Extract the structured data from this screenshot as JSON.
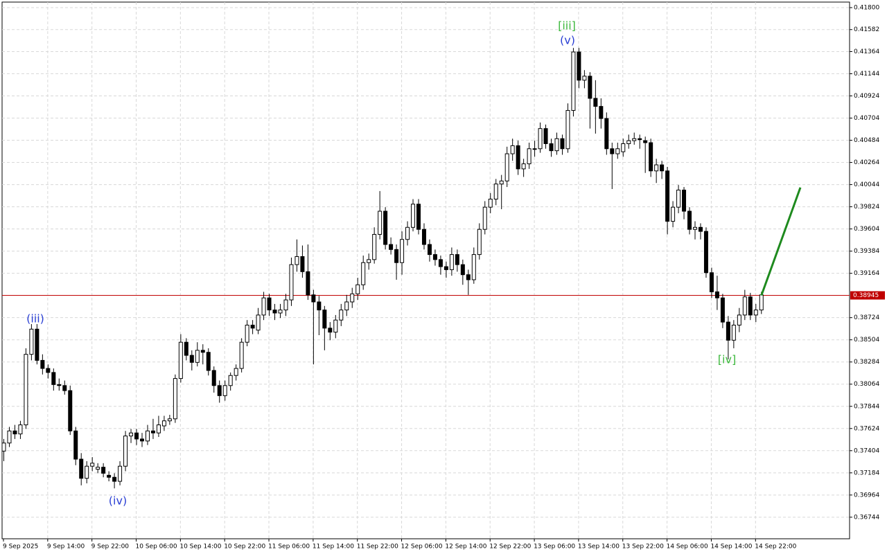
{
  "chart_data": {
    "type": "candlestick",
    "up_color": "#ffffff",
    "down_color": "#000000",
    "grid": true,
    "categories": [
      "9 Sep 2025",
      null,
      null,
      null,
      null,
      null,
      null,
      null,
      "9 Sep 14:00",
      null,
      null,
      null,
      null,
      null,
      null,
      null,
      "9 Sep 22:00",
      null,
      null,
      null,
      null,
      null,
      null,
      null,
      "10 Sep 06:00",
      null,
      null,
      null,
      null,
      null,
      null,
      null,
      "10 Sep 14:00",
      null,
      null,
      null,
      null,
      null,
      null,
      null,
      "10 Sep 22:00",
      null,
      null,
      null,
      null,
      null,
      null,
      null,
      "11 Sep 06:00",
      null,
      null,
      null,
      null,
      null,
      null,
      null,
      "11 Sep 14:00",
      null,
      null,
      null,
      null,
      null,
      null,
      null,
      "11 Sep 22:00",
      null,
      null,
      null,
      null,
      null,
      null,
      null,
      "12 Sep 06:00",
      null,
      null,
      null,
      null,
      null,
      null,
      null,
      "12 Sep 14:00",
      null,
      null,
      null,
      null,
      null,
      null,
      null,
      "12 Sep 22:00",
      null,
      null,
      null,
      null,
      null,
      null,
      null,
      "13 Sep 06:00",
      null,
      null,
      null,
      null,
      null,
      null,
      null,
      "13 Sep 14:00",
      null,
      null,
      null,
      null,
      null,
      null,
      null,
      "13 Sep 22:00",
      null,
      null,
      null,
      null,
      null,
      null,
      null,
      "14 Sep 06:00",
      null,
      null,
      null,
      null,
      null,
      null,
      null,
      "14 Sep 14:00",
      null,
      null,
      null,
      null,
      null,
      null,
      null,
      "14 Sep 22:00",
      null
    ],
    "candles": [
      [
        0.374,
        0.3752,
        0.373,
        0.3748
      ],
      [
        0.3748,
        0.3764,
        0.3744,
        0.376
      ],
      [
        0.376,
        0.3766,
        0.3752,
        0.3757
      ],
      [
        0.3757,
        0.377,
        0.3752,
        0.3766
      ],
      [
        0.3766,
        0.3842,
        0.3762,
        0.3836
      ],
      [
        0.3836,
        0.3866,
        0.383,
        0.3861
      ],
      [
        0.3861,
        0.3866,
        0.3826,
        0.383
      ],
      [
        0.383,
        0.3836,
        0.3816,
        0.3822
      ],
      [
        0.3822,
        0.3826,
        0.3812,
        0.3818
      ],
      [
        0.3818,
        0.3822,
        0.38,
        0.3806
      ],
      [
        0.3806,
        0.3812,
        0.38,
        0.3805
      ],
      [
        0.3805,
        0.381,
        0.3796,
        0.38
      ],
      [
        0.38,
        0.3805,
        0.3756,
        0.376
      ],
      [
        0.376,
        0.3764,
        0.3726,
        0.3732
      ],
      [
        0.3732,
        0.3738,
        0.3706,
        0.3713
      ],
      [
        0.3713,
        0.373,
        0.3708,
        0.3725
      ],
      [
        0.3725,
        0.3734,
        0.372,
        0.3728
      ],
      [
        0.3722,
        0.3728,
        0.3718,
        0.3724
      ],
      [
        0.3724,
        0.3728,
        0.3714,
        0.3718
      ],
      [
        0.3716,
        0.372,
        0.371,
        0.3714
      ],
      [
        0.3714,
        0.3718,
        0.3703,
        0.371
      ],
      [
        0.371,
        0.373,
        0.3706,
        0.3725
      ],
      [
        0.3725,
        0.376,
        0.372,
        0.3755
      ],
      [
        0.3755,
        0.3762,
        0.3748,
        0.3758
      ],
      [
        0.3758,
        0.3762,
        0.3746,
        0.3752
      ],
      [
        0.3752,
        0.3758,
        0.3744,
        0.375
      ],
      [
        0.375,
        0.3766,
        0.3746,
        0.376
      ],
      [
        0.376,
        0.3772,
        0.3752,
        0.3758
      ],
      [
        0.3758,
        0.3775,
        0.3754,
        0.3766
      ],
      [
        0.3765,
        0.3775,
        0.376,
        0.377
      ],
      [
        0.377,
        0.3776,
        0.3766,
        0.3772
      ],
      [
        0.3772,
        0.3816,
        0.3768,
        0.3812
      ],
      [
        0.3812,
        0.3856,
        0.3808,
        0.3848
      ],
      [
        0.3848,
        0.3852,
        0.383,
        0.3835
      ],
      [
        0.3835,
        0.384,
        0.382,
        0.3828
      ],
      [
        0.3828,
        0.3848,
        0.3824,
        0.384
      ],
      [
        0.384,
        0.3846,
        0.3826,
        0.3838
      ],
      [
        0.3838,
        0.3842,
        0.3815,
        0.382
      ],
      [
        0.382,
        0.3824,
        0.3798,
        0.3805
      ],
      [
        0.3805,
        0.381,
        0.3788,
        0.3795
      ],
      [
        0.3795,
        0.381,
        0.379,
        0.3805
      ],
      [
        0.3805,
        0.3818,
        0.38,
        0.3815
      ],
      [
        0.3815,
        0.3826,
        0.381,
        0.3822
      ],
      [
        0.3822,
        0.3852,
        0.3818,
        0.3848
      ],
      [
        0.3848,
        0.387,
        0.3844,
        0.3865
      ],
      [
        0.3865,
        0.387,
        0.3856,
        0.3862
      ],
      [
        0.386,
        0.3882,
        0.3856,
        0.3875
      ],
      [
        0.3875,
        0.3898,
        0.387,
        0.3892
      ],
      [
        0.3892,
        0.3896,
        0.3874,
        0.388
      ],
      [
        0.388,
        0.3886,
        0.387,
        0.3877
      ],
      [
        0.3877,
        0.3886,
        0.3872,
        0.388
      ],
      [
        0.388,
        0.3896,
        0.3874,
        0.389
      ],
      [
        0.389,
        0.3932,
        0.3884,
        0.3925
      ],
      [
        0.3925,
        0.395,
        0.3918,
        0.3933
      ],
      [
        0.3933,
        0.3944,
        0.3912,
        0.3918
      ],
      [
        0.3918,
        0.3945,
        0.389,
        0.3895
      ],
      [
        0.3895,
        0.39,
        0.3826,
        0.3888
      ],
      [
        0.3888,
        0.3894,
        0.3855,
        0.388
      ],
      [
        0.388,
        0.3884,
        0.384,
        0.3862
      ],
      [
        0.3862,
        0.3868,
        0.385,
        0.3858
      ],
      [
        0.3858,
        0.3875,
        0.3852,
        0.387
      ],
      [
        0.387,
        0.3886,
        0.3864,
        0.388
      ],
      [
        0.388,
        0.3895,
        0.3874,
        0.3888
      ],
      [
        0.3888,
        0.3902,
        0.3882,
        0.3896
      ],
      [
        0.3896,
        0.3912,
        0.389,
        0.3905
      ],
      [
        0.3905,
        0.3934,
        0.39,
        0.3927
      ],
      [
        0.3927,
        0.3936,
        0.392,
        0.393
      ],
      [
        0.393,
        0.3962,
        0.3926,
        0.3955
      ],
      [
        0.3955,
        0.3998,
        0.395,
        0.3978
      ],
      [
        0.3978,
        0.3982,
        0.394,
        0.3945
      ],
      [
        0.3945,
        0.3952,
        0.3935,
        0.394
      ],
      [
        0.394,
        0.3945,
        0.391,
        0.3927
      ],
      [
        0.3927,
        0.3958,
        0.3915,
        0.395
      ],
      [
        0.395,
        0.3968,
        0.3944,
        0.3962
      ],
      [
        0.3962,
        0.399,
        0.3958,
        0.3985
      ],
      [
        0.3985,
        0.399,
        0.3955,
        0.396
      ],
      [
        0.396,
        0.3966,
        0.394,
        0.3945
      ],
      [
        0.3945,
        0.395,
        0.3928,
        0.3935
      ],
      [
        0.3935,
        0.394,
        0.3924,
        0.393
      ],
      [
        0.393,
        0.3934,
        0.3915,
        0.3923
      ],
      [
        0.3923,
        0.3928,
        0.3912,
        0.392
      ],
      [
        0.392,
        0.3942,
        0.3914,
        0.3935
      ],
      [
        0.3935,
        0.394,
        0.3918,
        0.3925
      ],
      [
        0.3925,
        0.393,
        0.3905,
        0.3915
      ],
      [
        0.3915,
        0.392,
        0.3895,
        0.391
      ],
      [
        0.391,
        0.3942,
        0.3906,
        0.3935
      ],
      [
        0.3935,
        0.3966,
        0.393,
        0.396
      ],
      [
        0.396,
        0.3988,
        0.3955,
        0.3982
      ],
      [
        0.3982,
        0.3996,
        0.3976,
        0.399
      ],
      [
        0.399,
        0.401,
        0.3984,
        0.4005
      ],
      [
        0.4005,
        0.4014,
        0.398,
        0.4008
      ],
      [
        0.4008,
        0.4042,
        0.4002,
        0.4035
      ],
      [
        0.4035,
        0.405,
        0.4028,
        0.4043
      ],
      [
        0.4043,
        0.4048,
        0.4014,
        0.402
      ],
      [
        0.402,
        0.403,
        0.4012,
        0.4025
      ],
      [
        0.4025,
        0.4046,
        0.402,
        0.404
      ],
      [
        0.404,
        0.4048,
        0.4032,
        0.404
      ],
      [
        0.404,
        0.4066,
        0.4036,
        0.406
      ],
      [
        0.406,
        0.4064,
        0.404,
        0.4045
      ],
      [
        0.4045,
        0.405,
        0.4032,
        0.4038
      ],
      [
        0.4038,
        0.4056,
        0.4034,
        0.405
      ],
      [
        0.405,
        0.4054,
        0.4034,
        0.404
      ],
      [
        0.404,
        0.4085,
        0.4036,
        0.4078
      ],
      [
        0.4078,
        0.414,
        0.4072,
        0.4136
      ],
      [
        0.4136,
        0.414,
        0.41,
        0.4108
      ],
      [
        0.4108,
        0.4118,
        0.41,
        0.4112
      ],
      [
        0.4112,
        0.4116,
        0.406,
        0.409
      ],
      [
        0.409,
        0.4108,
        0.4055,
        0.4082
      ],
      [
        0.4082,
        0.409,
        0.406,
        0.407
      ],
      [
        0.407,
        0.4076,
        0.4034,
        0.404
      ],
      [
        0.404,
        0.4046,
        0.4,
        0.4035
      ],
      [
        0.4035,
        0.4046,
        0.403,
        0.404
      ],
      [
        0.4037,
        0.405,
        0.4032,
        0.4045
      ],
      [
        0.4045,
        0.4054,
        0.404,
        0.4048
      ],
      [
        0.4048,
        0.4056,
        0.4044,
        0.405
      ],
      [
        0.405,
        0.4054,
        0.404,
        0.4049
      ],
      [
        0.4048,
        0.4052,
        0.4016,
        0.4046
      ],
      [
        0.4046,
        0.405,
        0.4012,
        0.4018
      ],
      [
        0.4018,
        0.403,
        0.4006,
        0.4024
      ],
      [
        0.4024,
        0.4028,
        0.401,
        0.4018
      ],
      [
        0.4018,
        0.4022,
        0.3955,
        0.3968
      ],
      [
        0.3968,
        0.3988,
        0.3962,
        0.3982
      ],
      [
        0.3982,
        0.4004,
        0.3976,
        0.3999
      ],
      [
        0.3999,
        0.4002,
        0.397,
        0.3978
      ],
      [
        0.3978,
        0.3982,
        0.3955,
        0.396
      ],
      [
        0.396,
        0.3968,
        0.395,
        0.3962
      ],
      [
        0.3962,
        0.3966,
        0.395,
        0.3958
      ],
      [
        0.3958,
        0.3962,
        0.3912,
        0.3917
      ],
      [
        0.3917,
        0.3922,
        0.3892,
        0.3898
      ],
      [
        0.3898,
        0.3914,
        0.388,
        0.3892
      ],
      [
        0.3892,
        0.3896,
        0.3862,
        0.3868
      ],
      [
        0.3868,
        0.3874,
        0.3831,
        0.385
      ],
      [
        0.385,
        0.387,
        0.3842,
        0.3865
      ],
      [
        0.3865,
        0.3882,
        0.3858,
        0.3875
      ],
      [
        0.3875,
        0.39,
        0.387,
        0.3893
      ],
      [
        0.3893,
        0.3897,
        0.387,
        0.3875
      ],
      [
        0.3875,
        0.3886,
        0.3868,
        0.388
      ],
      [
        0.388,
        0.3898,
        0.3876,
        0.3895
      ]
    ],
    "ylim": [
      0.3653,
      0.41855
    ],
    "yticks": [
      {
        "value": 0.418,
        "label": "0.41800"
      },
      0.41582,
      0.41364,
      0.41144,
      0.40924,
      0.40704,
      0.40484,
      0.40264,
      0.40044,
      0.39824,
      0.39604,
      0.39384,
      0.39164,
      0.38724,
      0.38504,
      0.38284,
      0.38064,
      0.37844,
      0.37624,
      0.37404,
      0.37184,
      0.36964,
      0.36744
    ],
    "current_price": {
      "value": 0.38945,
      "label": "0.38945",
      "color": "#c00000"
    },
    "forecast": {
      "color": "#1e8a1e",
      "values": [
        0.38945,
        0.40015
      ]
    },
    "annotations": [
      {
        "text": "(iii)",
        "color": "#2a3fd4"
      },
      {
        "text": "(iv)",
        "color": "#2a3fd4"
      },
      {
        "text": "[iii]",
        "color": "#3cb83c"
      },
      {
        "text": "(v)",
        "color": "#2a3fd4"
      },
      {
        "text": "[iv]",
        "color": "#3cb83c"
      }
    ]
  }
}
